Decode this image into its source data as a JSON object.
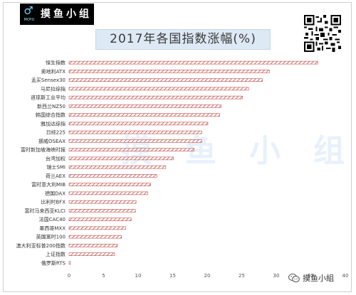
{
  "brand": {
    "logo_text": "摸鱼小组",
    "logo_sub": "MOYU",
    "watermark_text": "摸鱼小组",
    "badge_text": "摸鱼小組"
  },
  "colors": {
    "bar_stroke": "#c0504d",
    "title_bg": "#dde9f5",
    "logo_bg": "#000000"
  },
  "icons": [
    "logo-mark-icon",
    "qr-code-icon",
    "wechat-icon"
  ],
  "chart_data": {
    "type": "bar",
    "orientation": "horizontal",
    "title": "2017年各国指数涨幅(%)",
    "categories": [
      "恒生指数",
      "奥地利ATX",
      "孟买Sensex30",
      "马尼拉综指",
      "道琼斯工业平均",
      "新西兰NZ50",
      "韩国综合指数",
      "雅加达综指",
      "日经225",
      "挪威OSEAX",
      "富时新加坡海峡时报",
      "台湾加权",
      "瑞士SMI",
      "荷兰AEX",
      "富时意大利MIB",
      "德国DAX",
      "比利时BFX",
      "富时马来西亚KLCI",
      "法国CAC40",
      "墨西哥MXX",
      "英国富时100",
      "澳大利亚标普200指数",
      "上证指数",
      "俄罗斯RTS"
    ],
    "values": [
      36.0,
      29.0,
      28.0,
      26.0,
      25.1,
      22.0,
      21.8,
      20.1,
      19.2,
      19.2,
      18.1,
      15.1,
      14.0,
      12.7,
      11.8,
      11.4,
      9.7,
      9.6,
      9.0,
      8.2,
      7.6,
      7.0,
      6.6,
      0.2
    ],
    "xlim": [
      0,
      40
    ],
    "xticks": [
      0,
      5,
      10,
      15,
      20,
      25,
      30,
      35,
      40
    ],
    "bar_fill": "diagonal-hatch",
    "grid": false,
    "legend": "none"
  }
}
